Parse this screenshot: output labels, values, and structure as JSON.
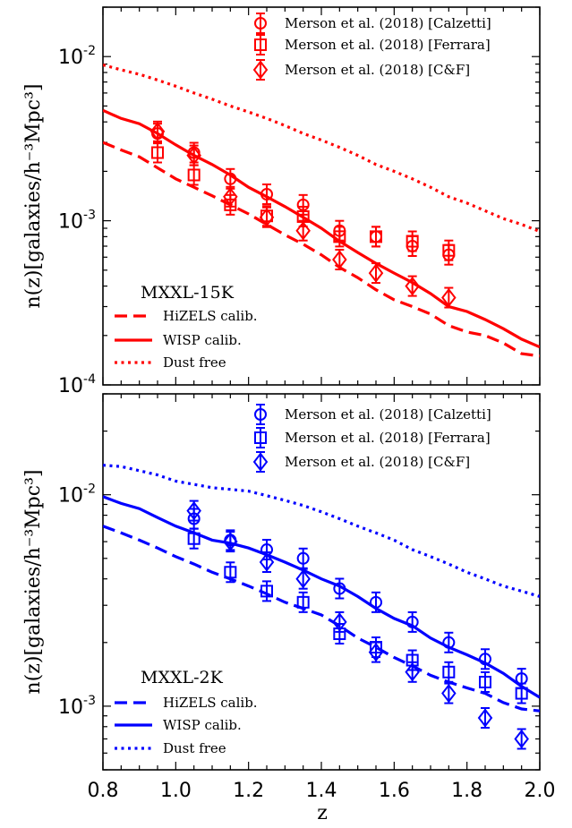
{
  "chart_data": [
    {
      "type": "line",
      "panel_label": "MXXL-15K",
      "color": "#ff0000",
      "xlim": [
        0.8,
        2.0
      ],
      "ylim": [
        0.0001,
        0.02
      ],
      "yscale": "log",
      "ylabel": "n(z)[galaxies/h⁻³Mpc³]",
      "xlabel": "",
      "ytick_labels": [
        {
          "base": "10",
          "exp": "-4",
          "value": 0.0001
        },
        {
          "base": "10",
          "exp": "-3",
          "value": 0.001
        },
        {
          "base": "10",
          "exp": "-2",
          "value": 0.01
        }
      ],
      "legend_top": [
        "Merson et al. (2018) [Calzetti]",
        "Merson et al. (2018) [Ferrara]",
        "Merson et al. (2018) [C&F]"
      ],
      "legend_bottom": [
        "HiZELS calib.",
        "WISP calib.",
        "Dust free"
      ],
      "lines": {
        "hizels": {
          "x": [
            0.8,
            0.85,
            0.9,
            0.95,
            1.0,
            1.05,
            1.1,
            1.15,
            1.2,
            1.25,
            1.3,
            1.35,
            1.4,
            1.45,
            1.5,
            1.55,
            1.6,
            1.65,
            1.7,
            1.75,
            1.8,
            1.85,
            1.9,
            1.95,
            2.0
          ],
          "y": [
            0.003,
            0.0027,
            0.00245,
            0.0021,
            0.0018,
            0.0016,
            0.00142,
            0.00125,
            0.0011,
            0.00095,
            0.00082,
            0.00072,
            0.00062,
            0.00052,
            0.00045,
            0.00038,
            0.00033,
            0.0003,
            0.00027,
            0.00023,
            0.00021,
            0.0002,
            0.00018,
            0.000155,
            0.00015
          ]
        },
        "wisp": {
          "x": [
            0.8,
            0.85,
            0.9,
            0.95,
            1.0,
            1.05,
            1.1,
            1.15,
            1.2,
            1.25,
            1.3,
            1.35,
            1.4,
            1.45,
            1.5,
            1.55,
            1.6,
            1.65,
            1.7,
            1.75,
            1.8,
            1.85,
            1.9,
            1.95,
            2.0
          ],
          "y": [
            0.0047,
            0.0042,
            0.0039,
            0.0034,
            0.0029,
            0.0025,
            0.0022,
            0.0019,
            0.0016,
            0.0014,
            0.00122,
            0.00105,
            0.0009,
            0.00075,
            0.00064,
            0.00055,
            0.00048,
            0.00042,
            0.00036,
            0.0003,
            0.00028,
            0.00025,
            0.00022,
            0.00019,
            0.00017
          ]
        },
        "dust": {
          "x": [
            0.8,
            0.85,
            0.9,
            0.95,
            1.0,
            1.05,
            1.1,
            1.15,
            1.2,
            1.25,
            1.3,
            1.35,
            1.4,
            1.45,
            1.5,
            1.55,
            1.6,
            1.65,
            1.7,
            1.75,
            1.8,
            1.85,
            1.9,
            1.95,
            2.0
          ],
          "y": [
            0.0089,
            0.0083,
            0.0078,
            0.0072,
            0.0066,
            0.006,
            0.0055,
            0.005,
            0.0046,
            0.0042,
            0.0038,
            0.0034,
            0.0031,
            0.0028,
            0.0025,
            0.0022,
            0.002,
            0.0018,
            0.0016,
            0.0014,
            0.00128,
            0.00115,
            0.00103,
            0.00095,
            0.00086
          ]
        }
      },
      "points": {
        "calzetti": [
          [
            0.95,
            0.0034
          ],
          [
            1.05,
            0.0026
          ],
          [
            1.15,
            0.0018
          ],
          [
            1.25,
            0.00145
          ],
          [
            1.35,
            0.00125
          ],
          [
            1.45,
            0.00087
          ],
          [
            1.55,
            0.0008
          ],
          [
            1.65,
            0.0007
          ],
          [
            1.75,
            0.00062
          ]
        ],
        "ferrara": [
          [
            0.95,
            0.0026
          ],
          [
            1.05,
            0.0019
          ],
          [
            1.15,
            0.00125
          ],
          [
            1.25,
            0.00107
          ],
          [
            1.35,
            0.00106
          ],
          [
            1.45,
            0.0008
          ],
          [
            1.55,
            0.0008
          ],
          [
            1.65,
            0.00075
          ],
          [
            1.75,
            0.00066
          ]
        ],
        "cf": [
          [
            0.95,
            0.0035
          ],
          [
            1.05,
            0.0025
          ],
          [
            1.15,
            0.0014
          ],
          [
            1.25,
            0.00105
          ],
          [
            1.35,
            0.00087
          ],
          [
            1.45,
            0.00058
          ],
          [
            1.55,
            0.00048
          ],
          [
            1.65,
            0.0004
          ],
          [
            1.75,
            0.00034
          ]
        ]
      }
    },
    {
      "type": "line",
      "panel_label": "MXXL-2K",
      "color": "#0000ff",
      "xlim": [
        0.8,
        2.0
      ],
      "ylim": [
        0.0005,
        0.03
      ],
      "yscale": "log",
      "ylabel": "n(z)[galaxies/h⁻³Mpc³]",
      "xlabel": "z",
      "xtick_labels": [
        "0.8",
        "1.0",
        "1.2",
        "1.4",
        "1.6",
        "1.8",
        "2.0"
      ],
      "ytick_labels": [
        {
          "base": "10",
          "exp": "-3",
          "value": 0.001
        },
        {
          "base": "10",
          "exp": "-2",
          "value": 0.01
        }
      ],
      "legend_top": [
        "Merson et al. (2018) [Calzetti]",
        "Merson et al. (2018) [Ferrara]",
        "Merson et al. (2018) [C&F]"
      ],
      "legend_bottom": [
        "HiZELS calib.",
        "WISP calib.",
        "Dust free"
      ],
      "lines": {
        "hizels": {
          "x": [
            0.8,
            0.85,
            0.9,
            0.95,
            1.0,
            1.05,
            1.1,
            1.15,
            1.2,
            1.25,
            1.3,
            1.35,
            1.4,
            1.45,
            1.5,
            1.55,
            1.6,
            1.65,
            1.7,
            1.75,
            1.8,
            1.85,
            1.9,
            1.95,
            2.0
          ],
          "y": [
            0.0071,
            0.0066,
            0.0061,
            0.0056,
            0.0051,
            0.0047,
            0.0043,
            0.004,
            0.0037,
            0.0034,
            0.0031,
            0.0029,
            0.0027,
            0.0024,
            0.0021,
            0.0019,
            0.0017,
            0.00155,
            0.0014,
            0.0013,
            0.00122,
            0.00115,
            0.00104,
            0.00097,
            0.00095
          ]
        },
        "wisp": {
          "x": [
            0.8,
            0.85,
            0.9,
            0.95,
            1.0,
            1.05,
            1.1,
            1.15,
            1.2,
            1.25,
            1.3,
            1.35,
            1.4,
            1.45,
            1.5,
            1.55,
            1.6,
            1.65,
            1.7,
            1.75,
            1.8,
            1.85,
            1.9,
            1.95,
            2.0
          ],
          "y": [
            0.0098,
            0.0091,
            0.0086,
            0.0078,
            0.0071,
            0.0066,
            0.0061,
            0.0059,
            0.0056,
            0.0052,
            0.0048,
            0.0044,
            0.004,
            0.0037,
            0.0033,
            0.0029,
            0.0026,
            0.0024,
            0.0021,
            0.0019,
            0.00175,
            0.0016,
            0.00143,
            0.00124,
            0.0011
          ]
        },
        "dust": {
          "x": [
            0.8,
            0.85,
            0.9,
            0.95,
            1.0,
            1.05,
            1.1,
            1.15,
            1.2,
            1.25,
            1.3,
            1.35,
            1.4,
            1.45,
            1.5,
            1.55,
            1.6,
            1.65,
            1.7,
            1.75,
            1.8,
            1.85,
            1.9,
            1.95,
            2.0
          ],
          "y": [
            0.0138,
            0.0136,
            0.013,
            0.0124,
            0.0116,
            0.0112,
            0.0108,
            0.0106,
            0.0104,
            0.0099,
            0.0094,
            0.0089,
            0.0083,
            0.0077,
            0.0071,
            0.0066,
            0.0061,
            0.0055,
            0.0051,
            0.0047,
            0.0043,
            0.004,
            0.0037,
            0.0035,
            0.0033
          ]
        }
      },
      "points": {
        "calzetti": [
          [
            1.05,
            0.0077
          ],
          [
            1.15,
            0.0061
          ],
          [
            1.25,
            0.0055
          ],
          [
            1.35,
            0.005
          ],
          [
            1.45,
            0.0036
          ],
          [
            1.55,
            0.0031
          ],
          [
            1.65,
            0.0025
          ],
          [
            1.75,
            0.002
          ],
          [
            1.85,
            0.00167
          ],
          [
            1.95,
            0.00135
          ]
        ],
        "ferrara": [
          [
            1.05,
            0.0062
          ],
          [
            1.15,
            0.0043
          ],
          [
            1.25,
            0.0035
          ],
          [
            1.35,
            0.0031
          ],
          [
            1.45,
            0.0022
          ],
          [
            1.55,
            0.0019
          ],
          [
            1.65,
            0.00165
          ],
          [
            1.75,
            0.00145
          ],
          [
            1.85,
            0.0013
          ],
          [
            1.95,
            0.00115
          ]
        ],
        "cf": [
          [
            1.05,
            0.0084
          ],
          [
            1.15,
            0.006
          ],
          [
            1.25,
            0.0048
          ],
          [
            1.35,
            0.004
          ],
          [
            1.45,
            0.0025
          ],
          [
            1.55,
            0.0018
          ],
          [
            1.65,
            0.00145
          ],
          [
            1.75,
            0.00115
          ],
          [
            1.85,
            0.00088
          ],
          [
            1.95,
            0.0007
          ]
        ]
      }
    }
  ]
}
